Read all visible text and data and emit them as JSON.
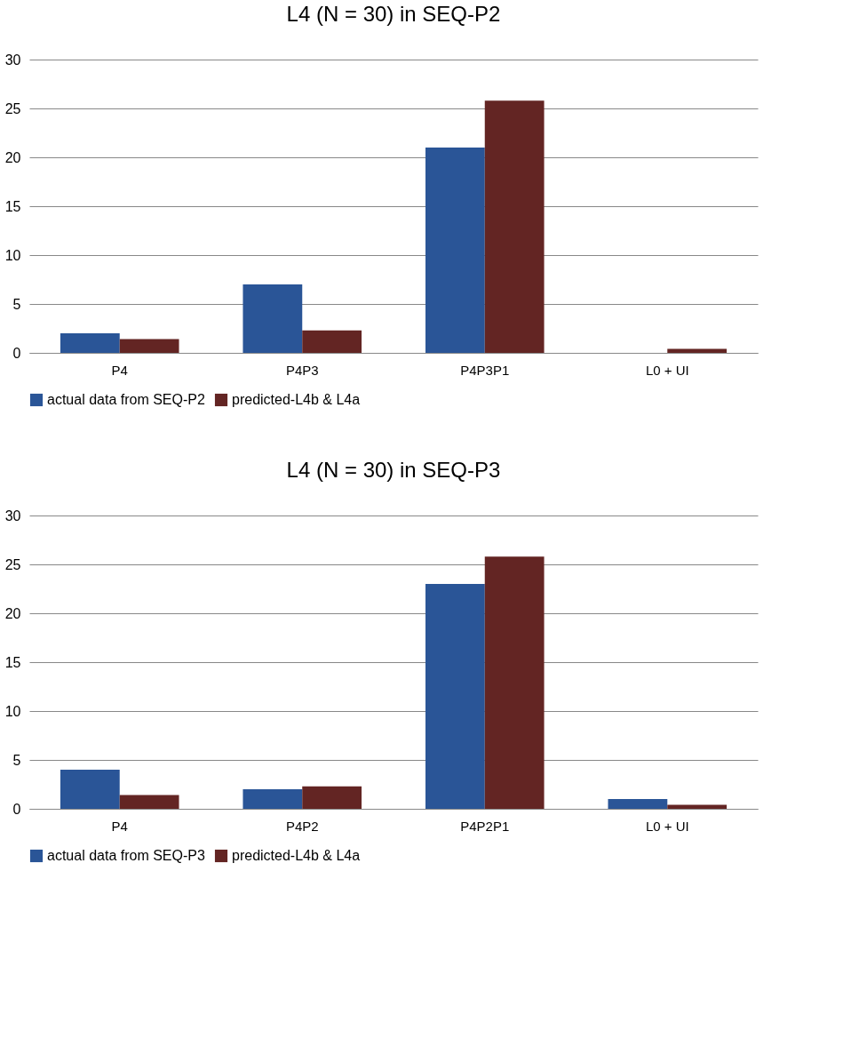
{
  "chart_data": [
    {
      "type": "bar",
      "title": "L4 (N = 30) in SEQ-P2",
      "categories": [
        "P4",
        "P4P3",
        "P4P3P1",
        "L0 + UI"
      ],
      "series": [
        {
          "name": "actual data from SEQ-P2",
          "color": "#2a5597",
          "values": [
            2,
            7,
            21,
            0
          ]
        },
        {
          "name": "predicted-L4b & L4a",
          "color": "#632523",
          "values": [
            1.4,
            2.3,
            25.8,
            0.4
          ]
        }
      ],
      "ylim": [
        0,
        30
      ],
      "yticks": [
        0,
        5,
        10,
        15,
        20,
        25,
        30
      ],
      "grid": "y",
      "legend": "bottom"
    },
    {
      "type": "bar",
      "title": "L4 (N = 30) in SEQ-P3",
      "categories": [
        "P4",
        "P4P2",
        "P4P2P1",
        "L0 + UI"
      ],
      "series": [
        {
          "name": "actual data from SEQ-P3",
          "color": "#2a5597",
          "values": [
            4,
            2,
            23,
            1
          ]
        },
        {
          "name": "predicted-L4b & L4a",
          "color": "#632523",
          "values": [
            1.4,
            2.3,
            25.8,
            0.4
          ]
        }
      ],
      "ylim": [
        0,
        30
      ],
      "yticks": [
        0,
        5,
        10,
        15,
        20,
        25,
        30
      ],
      "grid": "y",
      "legend": "bottom"
    }
  ]
}
